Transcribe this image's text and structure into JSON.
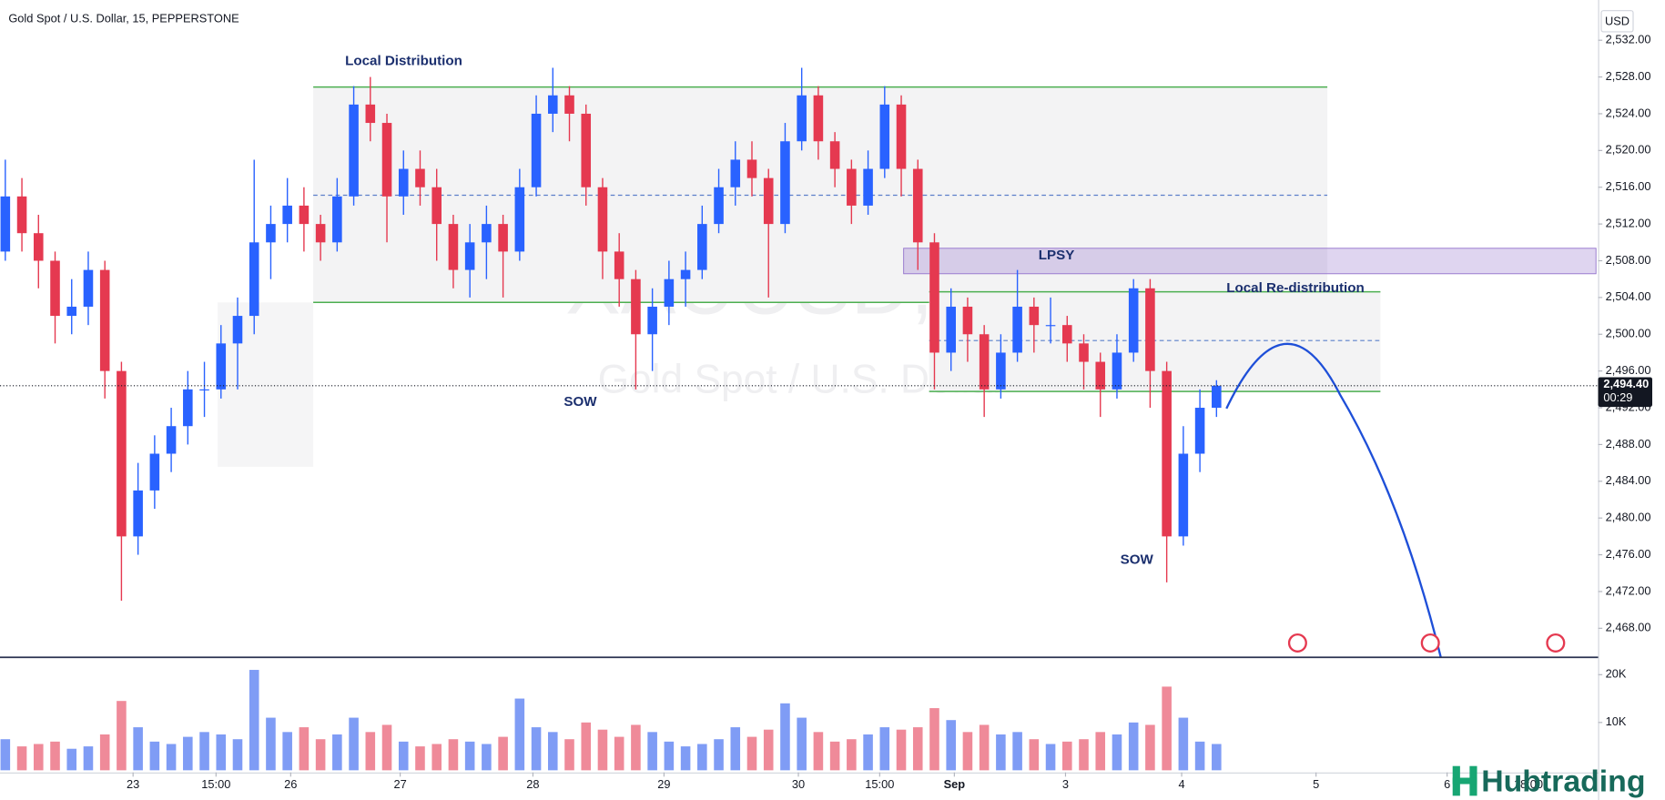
{
  "header": "Gold Spot / U.S. Dollar, 15, PEPPERSTONE",
  "watermark": {
    "symbol": "XAUUSD, 15",
    "name": "Gold Spot / U.S. Dollar"
  },
  "annotations": [
    "Local Distribution",
    "LPSY",
    "Local Re-distribution",
    "SOW",
    "SOW"
  ],
  "logo": "Hubtrading",
  "chart_data": [
    {
      "type": "candlestick",
      "currency": "USD",
      "up_color": "#2962ff",
      "down_color": "#e53950",
      "grid": false,
      "last_price_label": "2,494.40",
      "countdown": "00:29",
      "open": [
        2509,
        2515,
        2511,
        2508,
        2502,
        2503,
        2507,
        2496,
        2478,
        2483,
        2487,
        2490,
        2494,
        2494,
        2499,
        2502,
        2510,
        2512,
        2514,
        2512,
        2510,
        2515,
        2525,
        2523,
        2515,
        2518,
        2516,
        2512,
        2507,
        2510,
        2512,
        2509,
        2516,
        2524,
        2526,
        2524,
        2516,
        2509,
        2506,
        2500,
        2503,
        2506,
        2507,
        2512,
        2516,
        2519,
        2517,
        2512,
        2521,
        2526,
        2521,
        2518,
        2514,
        2518,
        2525,
        2518,
        2510,
        2498,
        2503,
        2500,
        2494,
        2498,
        2503,
        2501,
        2501,
        2499,
        2497,
        2494,
        2498,
        2505,
        2496,
        2478,
        2487,
        2492
      ],
      "high": [
        2519,
        2517,
        2513,
        2509,
        2506,
        2509,
        2508,
        2497,
        2486,
        2489,
        2492,
        2496,
        2497,
        2501,
        2504,
        2519,
        2514,
        2517,
        2516,
        2513,
        2517,
        2527,
        2528,
        2524,
        2520,
        2520,
        2518,
        2513,
        2512,
        2514,
        2513,
        2518,
        2526,
        2529,
        2527,
        2525,
        2517,
        2511,
        2507,
        2505,
        2508,
        2509,
        2514,
        2518,
        2521,
        2521,
        2518,
        2523,
        2529,
        2527,
        2522,
        2519,
        2520,
        2527,
        2526,
        2519,
        2511,
        2505,
        2504,
        2501,
        2500,
        2507,
        2504,
        2504,
        2502,
        2500,
        2498,
        2500,
        2506,
        2506,
        2497,
        2490,
        2494,
        2495
      ],
      "low": [
        2508,
        2509,
        2505,
        2499,
        2500,
        2501,
        2493,
        2471,
        2476,
        2481,
        2485,
        2488,
        2491,
        2493,
        2494,
        2500,
        2506,
        2510,
        2509,
        2508,
        2509,
        2514,
        2521,
        2510,
        2513,
        2514,
        2508,
        2505,
        2504,
        2506,
        2504,
        2508,
        2515,
        2522,
        2521,
        2514,
        2506,
        2503,
        2494,
        2496,
        2501,
        2503,
        2506,
        2511,
        2514,
        2515,
        2504,
        2511,
        2520,
        2519,
        2516,
        2512,
        2513,
        2517,
        2515,
        2507,
        2494,
        2496,
        2497,
        2491,
        2493,
        2497,
        2498,
        2499,
        2497,
        2494,
        2491,
        2493,
        2497,
        2492,
        2473,
        2477,
        2485,
        2491
      ],
      "close": [
        2515,
        2511,
        2508,
        2502,
        2503,
        2507,
        2496,
        2478,
        2483,
        2487,
        2490,
        2494,
        2494,
        2499,
        2502,
        2510,
        2512,
        2514,
        2512,
        2510,
        2515,
        2525,
        2523,
        2515,
        2518,
        2516,
        2512,
        2507,
        2510,
        2512,
        2509,
        2516,
        2524,
        2526,
        2524,
        2516,
        2509,
        2506,
        2500,
        2503,
        2506,
        2507,
        2512,
        2516,
        2519,
        2517,
        2512,
        2521,
        2526,
        2521,
        2518,
        2514,
        2518,
        2525,
        2518,
        2510,
        2498,
        2503,
        2500,
        2494,
        2498,
        2503,
        2501,
        2501,
        2499,
        2497,
        2494,
        2498,
        2505,
        2496,
        2478,
        2487,
        2492,
        2494.4
      ],
      "xlim": [
        0,
        96
      ],
      "xticks": [
        {
          "value": 7.7,
          "label": "23"
        },
        {
          "value": 12.7,
          "label": "15:00"
        },
        {
          "value": 17.2,
          "label": "26"
        },
        {
          "value": 23.8,
          "label": "27"
        },
        {
          "value": 31.8,
          "label": "28"
        },
        {
          "value": 39.7,
          "label": "29"
        },
        {
          "value": 47.8,
          "label": "30"
        },
        {
          "value": 52.7,
          "label": "15:00"
        },
        {
          "value": 57.2,
          "label": "Sep"
        },
        {
          "value": 63.9,
          "label": "3"
        },
        {
          "value": 70.9,
          "label": "4"
        },
        {
          "value": 79.0,
          "label": "5"
        },
        {
          "value": 86.9,
          "label": "6"
        },
        {
          "value": 91.8,
          "label": "18:00"
        }
      ],
      "ylim": [
        2464.9,
        2535.8
      ],
      "yticks": [
        {
          "value": 2468,
          "label": "2,468.00"
        },
        {
          "value": 2472,
          "label": "2,472.00"
        },
        {
          "value": 2476,
          "label": "2,476.00"
        },
        {
          "value": 2480,
          "label": "2,480.00"
        },
        {
          "value": 2484,
          "label": "2,484.00"
        },
        {
          "value": 2488,
          "label": "2,488.00"
        },
        {
          "value": 2492,
          "label": "2,492.00"
        },
        {
          "value": 2496,
          "label": "2,496.00"
        },
        {
          "value": 2500,
          "label": "2,500.00"
        },
        {
          "value": 2504,
          "label": "2,504.00"
        },
        {
          "value": 2508,
          "label": "2,508.00"
        },
        {
          "value": 2512,
          "label": "2,512.00"
        },
        {
          "value": 2516,
          "label": "2,516.00"
        },
        {
          "value": 2520,
          "label": "2,520.00"
        },
        {
          "value": 2524,
          "label": "2,524.00"
        },
        {
          "value": 2528,
          "label": "2,528.00"
        },
        {
          "value": 2532,
          "label": "2,532.00"
        }
      ]
    },
    {
      "type": "bar",
      "up_color": "#7f9cf5",
      "down_color": "#ef8a99",
      "values": [
        6500,
        5000,
        5500,
        6000,
        4500,
        5000,
        7500,
        14500,
        9000,
        6000,
        5500,
        7000,
        8000,
        7500,
        6500,
        21000,
        11000,
        8000,
        9000,
        6500,
        7500,
        11000,
        8000,
        9500,
        6000,
        5000,
        5500,
        6500,
        6000,
        5500,
        7000,
        15000,
        9000,
        8000,
        6500,
        10000,
        8500,
        7000,
        9500,
        8000,
        6000,
        5000,
        5500,
        6500,
        9000,
        7000,
        8500,
        14000,
        11000,
        8000,
        6000,
        6500,
        7500,
        9000,
        8500,
        9000,
        13000,
        10500,
        8000,
        9500,
        7500,
        8000,
        6500,
        5500,
        6000,
        6500,
        8000,
        7500,
        10000,
        9500,
        17500,
        11000,
        6000,
        5500
      ],
      "ylim": [
        0,
        23300
      ],
      "yticks": [
        {
          "value": 10000,
          "label": "10K"
        },
        {
          "value": 20000,
          "label": "20K"
        }
      ]
    }
  ]
}
